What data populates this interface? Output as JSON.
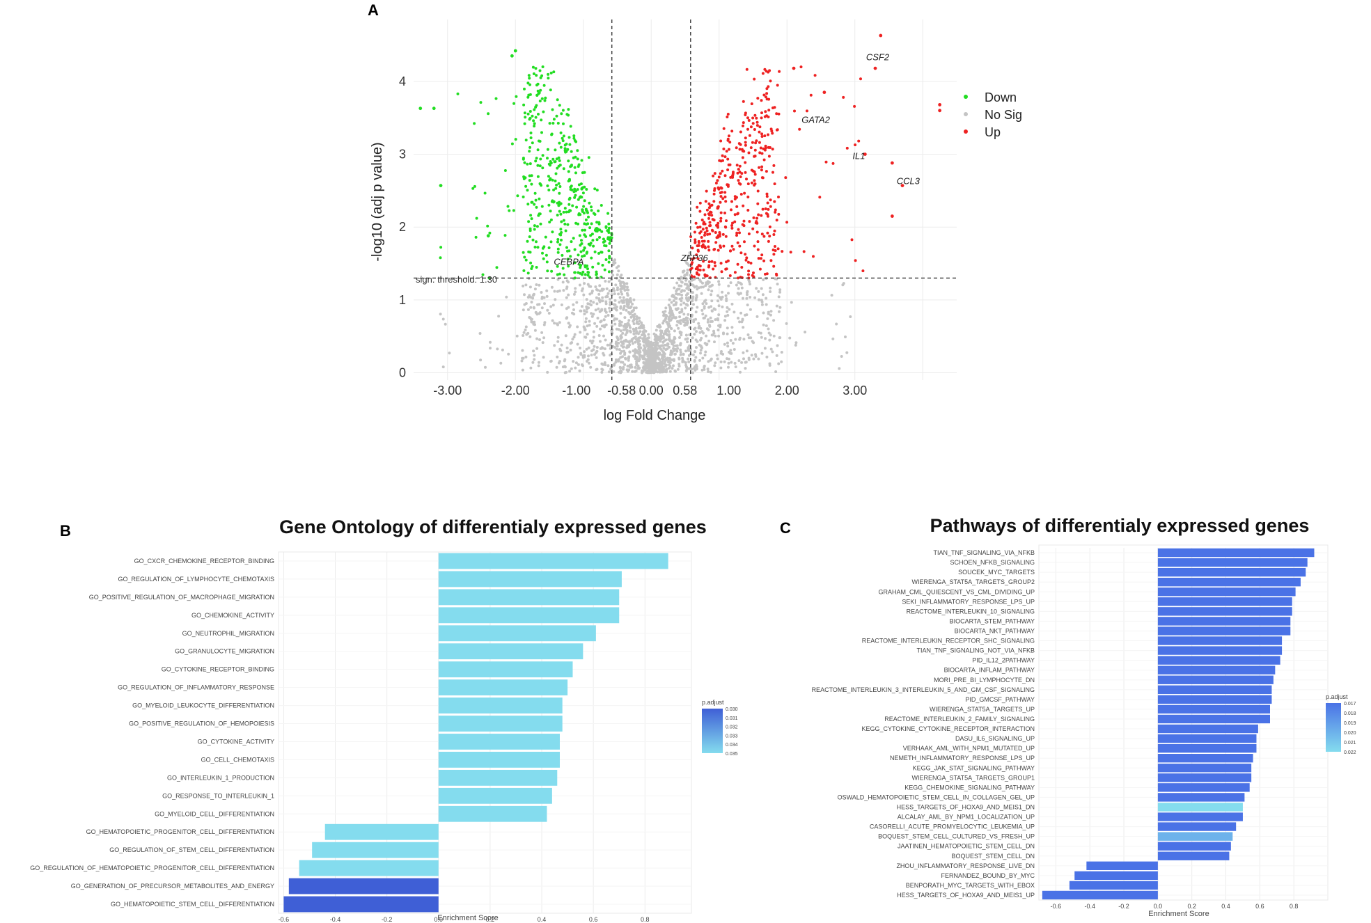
{
  "colors": {
    "down": "#22dd22",
    "nosig": "#c4c4c4",
    "up": "#ee2222",
    "go_bar_light": "#84dcee",
    "go_bar_dark": "#3f5fd6",
    "path_bar": "#4a72e6"
  },
  "chart_data": [
    {
      "panel": "A",
      "type": "scatter",
      "title": "",
      "xlabel": "log Fold Change",
      "ylabel": "-log10 (adj p value)",
      "xlim": [
        -3.5,
        4.5
      ],
      "ylim": [
        -0.1,
        4.85
      ],
      "x_ticks": [
        -3.0,
        -2.0,
        -1.0,
        -0.58,
        0.0,
        0.58,
        1.0,
        2.0,
        3.0
      ],
      "x_tick_labels": [
        "-3.00",
        "-2.00",
        "-1.00",
        "-0.58",
        "0.00",
        "0.58",
        "1.00",
        "2.00",
        "3.00"
      ],
      "y_ticks": [
        0,
        1,
        2,
        3,
        4
      ],
      "y_tick_labels": [
        "0",
        "1",
        "2",
        "3",
        "4"
      ],
      "threshold_y": 1.3,
      "threshold_label": "sign. threshold: 1.30",
      "fc_cutoffs": [
        -0.58,
        0.58
      ],
      "legend": [
        "Down",
        "No Sig",
        "Up"
      ],
      "labeled_genes": [
        {
          "name": "CSF2",
          "x": 3.35,
          "y": 4.33
        },
        {
          "name": "GATA2",
          "x": 2.4,
          "y": 3.47
        },
        {
          "name": "IL1",
          "x": 3.15,
          "y": 2.97
        },
        {
          "name": "CCL3",
          "x": 3.8,
          "y": 2.63
        },
        {
          "name": "CEBPA",
          "x": -1.25,
          "y": 1.52
        },
        {
          "name": "ZFP36",
          "x": 0.62,
          "y": 1.57
        }
      ],
      "highlight_points": [
        {
          "x": 3.38,
          "y": 4.63,
          "group": "up"
        },
        {
          "x": 3.3,
          "y": 4.18,
          "group": "up"
        },
        {
          "x": 2.55,
          "y": 3.85,
          "group": "up"
        },
        {
          "x": 4.25,
          "y": 3.68,
          "group": "up"
        },
        {
          "x": 4.25,
          "y": 3.6,
          "group": "up"
        },
        {
          "x": 3.55,
          "y": 2.88,
          "group": "up"
        },
        {
          "x": 3.7,
          "y": 2.57,
          "group": "up"
        },
        {
          "x": 3.55,
          "y": 2.15,
          "group": "up"
        },
        {
          "x": 3.15,
          "y": 3.0,
          "group": "up"
        },
        {
          "x": 2.1,
          "y": 4.18,
          "group": "up"
        },
        {
          "x": -2.0,
          "y": 4.42,
          "group": "down"
        },
        {
          "x": -2.05,
          "y": 4.35,
          "group": "down"
        },
        {
          "x": -3.4,
          "y": 3.63,
          "group": "down"
        },
        {
          "x": -3.2,
          "y": 3.63,
          "group": "down"
        },
        {
          "x": -3.1,
          "y": 2.57,
          "group": "down"
        },
        {
          "x": -2.4,
          "y": 1.88,
          "group": "down"
        }
      ]
    },
    {
      "panel": "B",
      "type": "bar",
      "orientation": "horizontal",
      "title": "Gene Ontology of differentialy expressed genes",
      "xlabel": "Enrichment Score",
      "xlim": [
        -0.62,
        0.98
      ],
      "x_ticks": [
        -0.6,
        -0.4,
        -0.2,
        0.0,
        0.2,
        0.4,
        0.6,
        0.8
      ],
      "x_tick_labels": [
        "-0.6",
        "-0.4",
        "-0.2",
        "0.0",
        "0.2",
        "0.4",
        "0.6",
        "0.8"
      ],
      "categories": [
        "GO_CXCR_CHEMOKINE_RECEPTOR_BINDING",
        "GO_REGULATION_OF_LYMPHOCYTE_CHEMOTAXIS",
        "GO_POSITIVE_REGULATION_OF_MACROPHAGE_MIGRATION",
        "GO_CHEMOKINE_ACTIVITY",
        "GO_NEUTROPHIL_MIGRATION",
        "GO_GRANULOCYTE_MIGRATION",
        "GO_CYTOKINE_RECEPTOR_BINDING",
        "GO_REGULATION_OF_INFLAMMATORY_RESPONSE",
        "GO_MYELOID_LEUKOCYTE_DIFFERENTIATION",
        "GO_POSITIVE_REGULATION_OF_HEMOPOIESIS",
        "GO_CYTOKINE_ACTIVITY",
        "GO_CELL_CHEMOTAXIS",
        "GO_INTERLEUKIN_1_PRODUCTION",
        "GO_RESPONSE_TO_INTERLEUKIN_1",
        "GO_MYELOID_CELL_DIFFERENTIATION",
        "GO_HEMATOPOIETIC_PROGENITOR_CELL_DIFFERENTIATION",
        "GO_REGULATION_OF_STEM_CELL_DIFFERENTIATION",
        "GO_REGULATION_OF_HEMATOPOIETIC_PROGENITOR_CELL_DIFFERENTIATION",
        "GO_GENERATION_OF_PRECURSOR_METABOLITES_AND_ENERGY",
        "GO_HEMATOPOIETIC_STEM_CELL_DIFFERENTIATION"
      ],
      "values": [
        0.89,
        0.71,
        0.7,
        0.7,
        0.61,
        0.56,
        0.52,
        0.5,
        0.48,
        0.48,
        0.47,
        0.47,
        0.46,
        0.44,
        0.42,
        -0.44,
        -0.49,
        -0.54,
        -0.58,
        -0.6
      ],
      "color_values": [
        0.035,
        0.035,
        0.035,
        0.035,
        0.035,
        0.035,
        0.035,
        0.035,
        0.035,
        0.035,
        0.035,
        0.035,
        0.035,
        0.035,
        0.035,
        0.035,
        0.035,
        0.035,
        0.03,
        0.03
      ],
      "legend_title": "p.adjust",
      "legend_ticks": [
        "0.030",
        "0.031",
        "0.032",
        "0.033",
        "0.034",
        "0.035"
      ],
      "legend_range": [
        0.03,
        0.035
      ]
    },
    {
      "panel": "C",
      "type": "bar",
      "orientation": "horizontal",
      "title": "Pathways of differentialy expressed genes",
      "xlabel": "Enrichment Score",
      "xlim": [
        -0.7,
        1.0
      ],
      "x_ticks": [
        -0.6,
        -0.4,
        -0.2,
        0.0,
        0.2,
        0.4,
        0.6,
        0.8
      ],
      "x_tick_labels": [
        "-0.6",
        "-0.4",
        "-0.2",
        "0.0",
        "0.2",
        "0.4",
        "0.6",
        "0.8"
      ],
      "categories": [
        "TIAN_TNF_SIGNALING_VIA_NFKB",
        "SCHOEN_NFKB_SIGNALING",
        "SOUCEK_MYC_TARGETS",
        "WIERENGA_STAT5A_TARGETS_GROUP2",
        "GRAHAM_CML_QUIESCENT_VS_CML_DIVIDING_UP",
        "SEKI_INFLAMMATORY_RESPONSE_LPS_UP",
        "REACTOME_INTERLEUKIN_10_SIGNALING",
        "BIOCARTA_STEM_PATHWAY",
        "BIOCARTA_NKT_PATHWAY",
        "REACTOME_INTERLEUKIN_RECEPTOR_SHC_SIGNALING",
        "TIAN_TNF_SIGNALING_NOT_VIA_NFKB",
        "PID_IL12_2PATHWAY",
        "BIOCARTA_INFLAM_PATHWAY",
        "MORI_PRE_BI_LYMPHOCYTE_DN",
        "REACTOME_INTERLEUKIN_3_INTERLEUKIN_5_AND_GM_CSF_SIGNALING",
        "PID_GMCSF_PATHWAY",
        "WIERENGA_STAT5A_TARGETS_UP",
        "REACTOME_INTERLEUKIN_2_FAMILY_SIGNALING",
        "KEGG_CYTOKINE_CYTOKINE_RECEPTOR_INTERACTION",
        "DASU_IL6_SIGNALING_UP",
        "VERHAAK_AML_WITH_NPM1_MUTATED_UP",
        "NEMETH_INFLAMMATORY_RESPONSE_LPS_UP",
        "KEGG_JAK_STAT_SIGNALING_PATHWAY",
        "WIERENGA_STAT5A_TARGETS_GROUP1",
        "KEGG_CHEMOKINE_SIGNALING_PATHWAY",
        "OSWALD_HEMATOPOIETIC_STEM_CELL_IN_COLLAGEN_GEL_UP",
        "HESS_TARGETS_OF_HOXA9_AND_MEIS1_DN",
        "ALCALAY_AML_BY_NPM1_LOCALIZATION_UP",
        "CASORELLI_ACUTE_PROMYELOCYTIC_LEUKEMIA_UP",
        "BOQUEST_STEM_CELL_CULTURED_VS_FRESH_UP",
        "JAATINEN_HEMATOPOIETIC_STEM_CELL_DN",
        "BOQUEST_STEM_CELL_DN",
        "ZHOU_INFLAMMATORY_RESPONSE_LIVE_DN",
        "FERNANDEZ_BOUND_BY_MYC",
        "BENPORATH_MYC_TARGETS_WITH_EBOX",
        "HESS_TARGETS_OF_HOXA9_AND_MEIS1_UP"
      ],
      "values": [
        0.92,
        0.88,
        0.87,
        0.84,
        0.81,
        0.79,
        0.79,
        0.78,
        0.78,
        0.73,
        0.73,
        0.72,
        0.69,
        0.68,
        0.67,
        0.67,
        0.66,
        0.66,
        0.59,
        0.58,
        0.58,
        0.56,
        0.55,
        0.55,
        0.54,
        0.51,
        0.5,
        0.5,
        0.46,
        0.44,
        0.43,
        0.42,
        -0.42,
        -0.49,
        -0.52,
        -0.68
      ],
      "color_values": [
        0.017,
        0.017,
        0.017,
        0.017,
        0.017,
        0.017,
        0.017,
        0.017,
        0.017,
        0.017,
        0.017,
        0.017,
        0.017,
        0.017,
        0.017,
        0.017,
        0.017,
        0.017,
        0.017,
        0.017,
        0.017,
        0.017,
        0.017,
        0.017,
        0.017,
        0.017,
        0.022,
        0.017,
        0.017,
        0.02,
        0.017,
        0.017,
        0.017,
        0.017,
        0.017,
        0.017
      ],
      "legend_title": "p.adjust",
      "legend_ticks": [
        "0.017",
        "0.018",
        "0.019",
        "0.020",
        "0.021",
        "0.022"
      ],
      "legend_range": [
        0.017,
        0.022
      ]
    }
  ]
}
